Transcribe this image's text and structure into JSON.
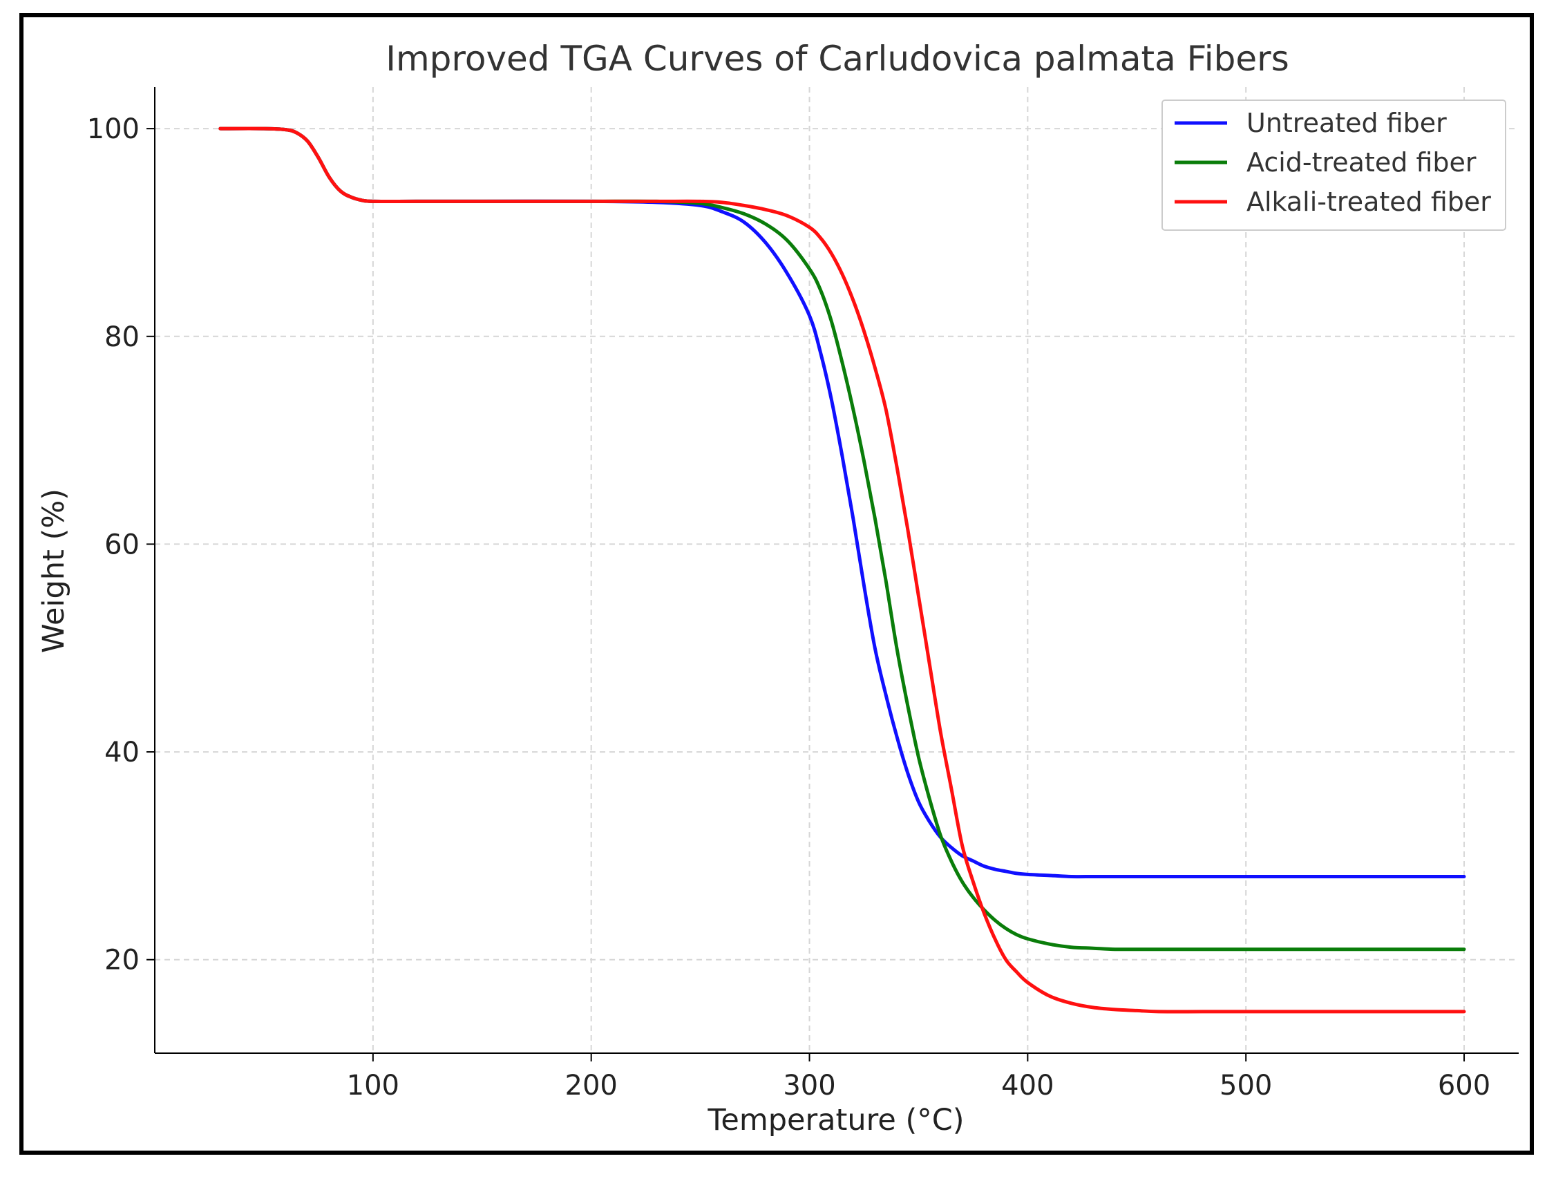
{
  "chart_data": {
    "type": "line",
    "title": "Improved TGA Curves of Carludovica palmata Fibers",
    "xlabel": "Temperature (°C)",
    "ylabel": "Weight (%)",
    "xlim": [
      0,
      625
    ],
    "ylim": [
      11,
      104
    ],
    "xticks": [
      100,
      200,
      300,
      400,
      500,
      600
    ],
    "yticks": [
      20,
      40,
      60,
      80,
      100
    ],
    "grid": true,
    "legend_position": "top-right",
    "x": [
      30,
      50,
      60,
      65,
      70,
      75,
      80,
      85,
      90,
      95,
      100,
      120,
      150,
      200,
      230,
      250,
      260,
      270,
      280,
      290,
      300,
      305,
      310,
      315,
      320,
      325,
      330,
      335,
      340,
      345,
      350,
      355,
      360,
      365,
      370,
      375,
      380,
      385,
      390,
      395,
      400,
      410,
      420,
      430,
      440,
      450,
      460,
      480,
      500,
      550,
      600
    ],
    "series": [
      {
        "name": "Untreated fiber",
        "color": "#1010ff",
        "values": [
          100,
          100,
          99.9,
          99.6,
          98.8,
          97.2,
          95.3,
          94.0,
          93.4,
          93.1,
          93.0,
          93.0,
          93.0,
          93.0,
          92.9,
          92.6,
          92.0,
          91.0,
          89.0,
          86.0,
          82.0,
          78.5,
          74.0,
          68.5,
          62.5,
          56.0,
          50.0,
          45.5,
          41.5,
          38.0,
          35.2,
          33.3,
          31.8,
          30.8,
          30.0,
          29.5,
          29.0,
          28.7,
          28.5,
          28.3,
          28.2,
          28.1,
          28.0,
          28.0,
          28.0,
          28.0,
          28.0,
          28.0,
          28.0,
          28.0,
          28.0
        ]
      },
      {
        "name": "Acid-treated fiber",
        "color": "#0a7d0a",
        "values": [
          100,
          100,
          99.9,
          99.6,
          98.8,
          97.2,
          95.3,
          94.0,
          93.4,
          93.1,
          93.0,
          93.0,
          93.0,
          93.0,
          93.0,
          92.8,
          92.4,
          91.8,
          90.8,
          89.2,
          86.5,
          84.5,
          81.5,
          77.5,
          73.0,
          68.0,
          62.5,
          56.5,
          50.0,
          44.5,
          39.5,
          35.5,
          32.0,
          29.5,
          27.5,
          26.0,
          24.8,
          23.8,
          23.0,
          22.4,
          22.0,
          21.5,
          21.2,
          21.1,
          21.0,
          21.0,
          21.0,
          21.0,
          21.0,
          21.0,
          21.0
        ]
      },
      {
        "name": "Alkali-treated fiber",
        "color": "#ff1010",
        "values": [
          100,
          100,
          99.9,
          99.6,
          98.8,
          97.2,
          95.3,
          94.0,
          93.4,
          93.1,
          93.0,
          93.0,
          93.0,
          93.0,
          93.0,
          93.0,
          92.9,
          92.6,
          92.2,
          91.6,
          90.5,
          89.5,
          88.0,
          86.0,
          83.5,
          80.5,
          77.0,
          73.0,
          67.5,
          61.5,
          55.0,
          48.5,
          42.0,
          36.5,
          31.0,
          27.5,
          24.5,
          22.0,
          20.0,
          18.8,
          17.8,
          16.5,
          15.8,
          15.4,
          15.2,
          15.1,
          15.0,
          15.0,
          15.0,
          15.0,
          15.0
        ]
      }
    ]
  }
}
